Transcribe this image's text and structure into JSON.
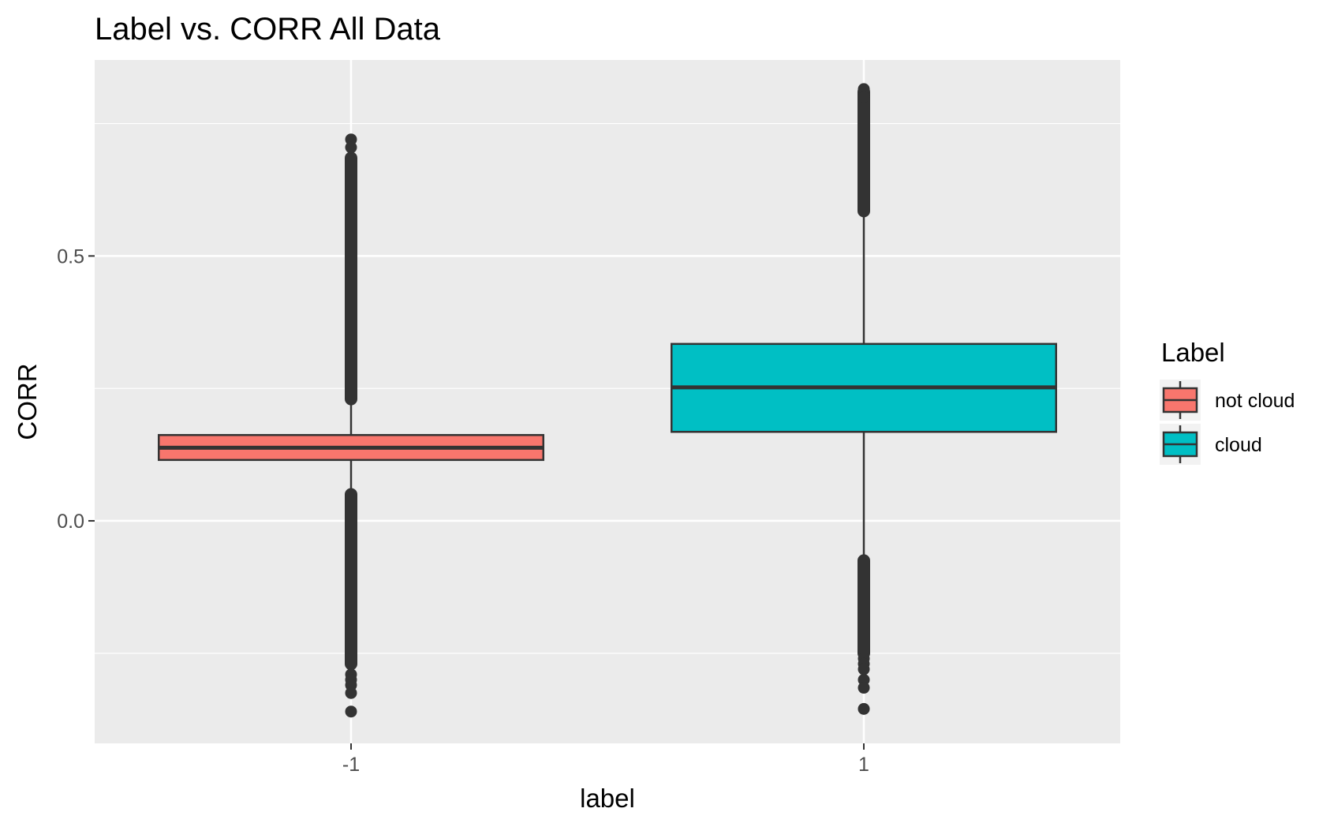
{
  "chart_data": {
    "type": "boxplot",
    "title": "Label vs. CORR All Data",
    "xlabel": "label",
    "ylabel": "CORR",
    "categories": [
      "-1",
      "1"
    ],
    "ylim": [
      -0.42,
      0.87
    ],
    "y_ticks": [
      {
        "value": 0.0,
        "label": "0.0"
      },
      {
        "value": 0.5,
        "label": "0.5"
      }
    ],
    "minor_grid": [
      -0.25,
      0.25,
      0.75
    ],
    "grid": true,
    "legend": {
      "title": "Label",
      "position": "right",
      "entries": [
        {
          "label": "not cloud",
          "color": "#F8766D"
        },
        {
          "label": "cloud",
          "color": "#00BFC4"
        }
      ]
    },
    "series": [
      {
        "category": "-1",
        "label": "not cloud",
        "color": "#F8766D",
        "q1": 0.115,
        "median": 0.138,
        "q3": 0.162,
        "whisker_low": 0.05,
        "whisker_high": 0.23,
        "outlier_ranges": [
          [
            0.23,
            0.685
          ],
          [
            -0.27,
            0.05
          ]
        ],
        "outliers": [
          0.72,
          0.705,
          -0.29,
          -0.3,
          -0.31,
          -0.325,
          -0.36
        ]
      },
      {
        "category": "1",
        "label": "cloud",
        "color": "#00BFC4",
        "q1": 0.168,
        "median": 0.252,
        "q3": 0.334,
        "whisker_low": -0.075,
        "whisker_high": 0.585,
        "outlier_ranges": [
          [
            0.585,
            0.81
          ],
          [
            -0.25,
            -0.075
          ]
        ],
        "outliers": [
          0.815,
          0.8,
          -0.26,
          -0.27,
          -0.28,
          -0.3,
          -0.315,
          -0.355
        ]
      }
    ]
  }
}
